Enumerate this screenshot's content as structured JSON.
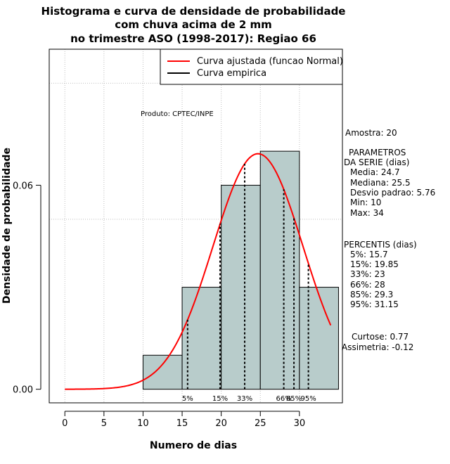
{
  "chart_data": {
    "type": "histogram",
    "title_lines": [
      "Histograma e curva de densidade de probabilidade",
      "com chuva acima de 2 mm",
      "no trimestre ASO (1998-2017): Regiao 66"
    ],
    "xlabel": "Numero de dias",
    "ylabel": "Densidade de probabilidade",
    "xlim": [
      -2,
      35.5
    ],
    "ylim": [
      -0.004,
      0.1
    ],
    "x_ticks": [
      0,
      5,
      10,
      15,
      20,
      25,
      30
    ],
    "y_ticks": [
      0.0,
      0.06
    ],
    "y_tick_labels": [
      "0.00",
      "0.06"
    ],
    "x_grid": [
      0,
      5,
      10,
      15,
      20,
      25,
      30
    ],
    "y_grid": [
      0.05,
      0.09
    ],
    "bins": [
      {
        "start": 10,
        "end": 15,
        "density": 0.01
      },
      {
        "start": 15,
        "end": 20,
        "density": 0.03
      },
      {
        "start": 20,
        "end": 25,
        "density": 0.06
      },
      {
        "start": 25,
        "end": 30,
        "density": 0.07
      },
      {
        "start": 30,
        "end": 35,
        "density": 0.03
      }
    ],
    "normal_curve": {
      "mean": 24.7,
      "sd": 5.76,
      "x_range": [
        0,
        34
      ],
      "color": "#ff0000"
    },
    "bar_color": "#b8cccb",
    "percentile_lines": [
      {
        "label": "5%",
        "x": 15.7
      },
      {
        "label": "15%",
        "x": 19.85
      },
      {
        "label": "33%",
        "x": 23
      },
      {
        "label": "66%",
        "x": 28
      },
      {
        "label": "85%",
        "x": 29.3
      },
      {
        "label": "95%",
        "x": 31.15
      }
    ],
    "legend": [
      {
        "label": "Curva ajustada (funcao Normal)",
        "color": "#ff0000"
      },
      {
        "label": "Curva empirica",
        "color": "#000000"
      }
    ],
    "legend_position": "top-right",
    "credit": "Produto: CPTEC/INPE",
    "stats_text": [
      "Amostra: 20",
      "PARAMETROS",
      "DA SERIE (dias)",
      "Media: 24.7",
      "Mediana: 25.5",
      "Desvio padrao: 5.76",
      "Min: 10",
      "Max: 34",
      "PERCENTIS (dias)",
      "5%: 15.7",
      "15%: 19.85",
      "33%: 23",
      "66%: 28",
      "85%: 29.3",
      "95%: 31.15",
      "Curtose: 0.77",
      "Assimetria: -0.12"
    ]
  }
}
